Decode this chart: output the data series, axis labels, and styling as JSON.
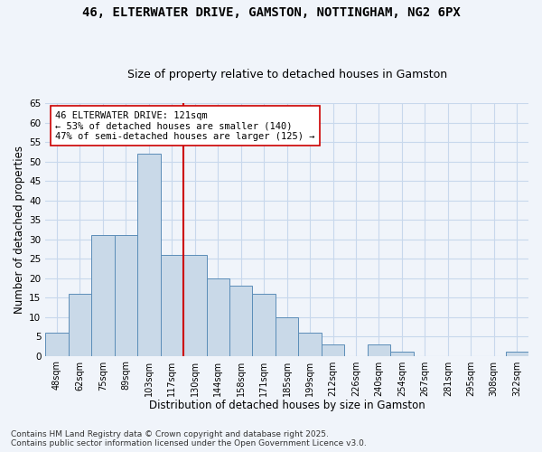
{
  "title1": "46, ELTERWATER DRIVE, GAMSTON, NOTTINGHAM, NG2 6PX",
  "title2": "Size of property relative to detached houses in Gamston",
  "xlabel": "Distribution of detached houses by size in Gamston",
  "ylabel": "Number of detached properties",
  "categories": [
    "48sqm",
    "62sqm",
    "75sqm",
    "89sqm",
    "103sqm",
    "117sqm",
    "130sqm",
    "144sqm",
    "158sqm",
    "171sqm",
    "185sqm",
    "199sqm",
    "212sqm",
    "226sqm",
    "240sqm",
    "254sqm",
    "267sqm",
    "281sqm",
    "295sqm",
    "308sqm",
    "322sqm"
  ],
  "values": [
    6,
    16,
    31,
    31,
    52,
    26,
    26,
    20,
    18,
    16,
    10,
    6,
    3,
    0,
    3,
    1,
    0,
    0,
    0,
    0,
    1
  ],
  "bar_color": "#c9d9e8",
  "bar_edge_color": "#5b8db8",
  "vline_index": 5.5,
  "vline_color": "#cc0000",
  "annotation_text": "46 ELTERWATER DRIVE: 121sqm\n← 53% of detached houses are smaller (140)\n47% of semi-detached houses are larger (125) →",
  "annotation_box_color": "#ffffff",
  "annotation_box_edge_color": "#cc0000",
  "ylim": [
    0,
    65
  ],
  "yticks": [
    0,
    5,
    10,
    15,
    20,
    25,
    30,
    35,
    40,
    45,
    50,
    55,
    60,
    65
  ],
  "bg_color": "#f0f4fa",
  "grid_color": "#c8d8ec",
  "footer_text": "Contains HM Land Registry data © Crown copyright and database right 2025.\nContains public sector information licensed under the Open Government Licence v3.0.",
  "title1_fontsize": 10,
  "title2_fontsize": 9,
  "xlabel_fontsize": 8.5,
  "ylabel_fontsize": 8.5,
  "ann_fontsize": 7.5,
  "footer_fontsize": 6.5
}
